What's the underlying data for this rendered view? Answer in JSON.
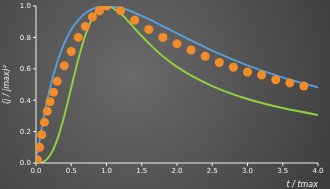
{
  "chart_data": {
    "type": "line",
    "x_label": "t / tmax",
    "y_label": "(j / jmax)²",
    "xlim": [
      0,
      4
    ],
    "ylim": [
      0,
      1
    ],
    "xticks": [
      {
        "value": 0,
        "label": "0.0"
      },
      {
        "value": 0.5,
        "label": "0.5"
      },
      {
        "value": 1,
        "label": "1.0"
      },
      {
        "value": 1.5,
        "label": "1.5"
      },
      {
        "value": 2,
        "label": "2.0"
      },
      {
        "value": 2.5,
        "label": "2.5"
      },
      {
        "value": 3,
        "label": "3.0"
      },
      {
        "value": 3.5,
        "label": "3.5"
      },
      {
        "value": 4,
        "label": "4.0"
      }
    ],
    "yticks": [
      {
        "value": 0,
        "label": "0.0"
      },
      {
        "value": 0.2,
        "label": "0.2"
      },
      {
        "value": 0.4,
        "label": "0.4"
      },
      {
        "value": 0.6,
        "label": "0.6"
      },
      {
        "value": 0.8,
        "label": "0.8"
      },
      {
        "value": 1,
        "label": "1.0"
      }
    ],
    "grid": false,
    "series": [
      {
        "type": "line",
        "color": "#5b9bd5",
        "x": [
          0.02,
          0.1,
          0.2,
          0.3,
          0.4,
          0.5,
          0.6,
          0.7,
          0.8,
          0.9,
          1.0,
          1.2,
          1.4,
          1.6,
          1.8,
          2.0,
          2.5,
          3.0,
          3.5,
          4.0
        ],
        "values": [
          0.06,
          0.27,
          0.48,
          0.64,
          0.76,
          0.85,
          0.91,
          0.955,
          0.98,
          0.995,
          1.0,
          0.987,
          0.957,
          0.916,
          0.871,
          0.825,
          0.716,
          0.622,
          0.545,
          0.482
        ]
      },
      {
        "type": "line",
        "color": "#8fce3f",
        "x": [
          0.02,
          0.1,
          0.2,
          0.3,
          0.4,
          0.5,
          0.6,
          0.7,
          0.8,
          0.9,
          1.0,
          1.2,
          1.4,
          1.6,
          1.8,
          2.0,
          2.5,
          3.0,
          3.5,
          4.0
        ],
        "values": [
          0.0,
          0.007,
          0.049,
          0.147,
          0.298,
          0.48,
          0.661,
          0.814,
          0.922,
          0.982,
          1.0,
          0.952,
          0.857,
          0.762,
          0.68,
          0.612,
          0.49,
          0.408,
          0.35,
          0.306
        ]
      },
      {
        "type": "scatter",
        "color": "#f28c28",
        "marker": "circle",
        "x": [
          0.02,
          0.05,
          0.08,
          0.12,
          0.16,
          0.2,
          0.25,
          0.3,
          0.4,
          0.5,
          0.6,
          0.7,
          0.8,
          0.9,
          1.0,
          1.2,
          1.4,
          1.6,
          1.8,
          2.0,
          2.2,
          2.4,
          2.6,
          2.8,
          3.0,
          3.2,
          3.4,
          3.6,
          3.8
        ],
        "values": [
          0.02,
          0.1,
          0.18,
          0.26,
          0.33,
          0.39,
          0.45,
          0.52,
          0.62,
          0.71,
          0.8,
          0.87,
          0.93,
          0.97,
          1.0,
          0.97,
          0.91,
          0.85,
          0.8,
          0.76,
          0.72,
          0.68,
          0.64,
          0.61,
          0.58,
          0.56,
          0.53,
          0.51,
          0.49
        ]
      }
    ]
  }
}
